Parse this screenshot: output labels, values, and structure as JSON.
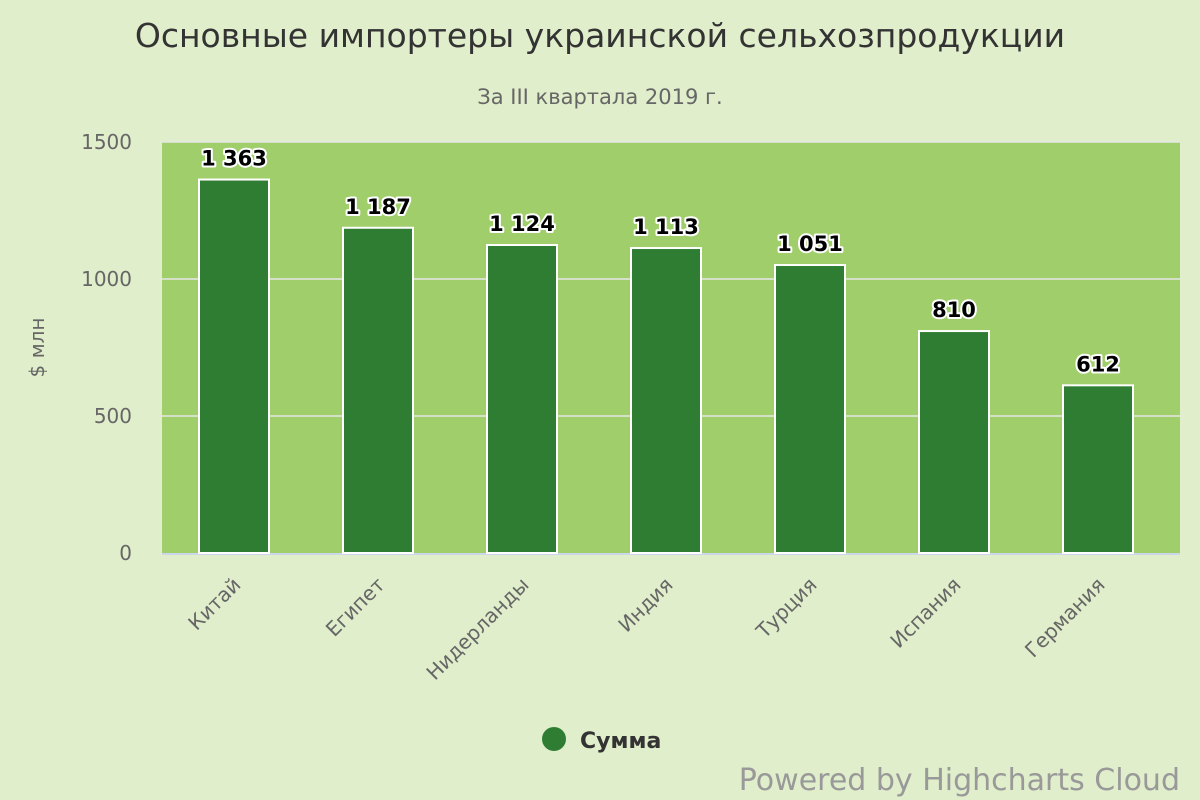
{
  "chart_data": {
    "type": "bar",
    "title": "Основные импортеры украинской сельхозпродукции",
    "subtitle": "За III квартала 2019 г.",
    "ylabel": "$ млн",
    "xlabel": "",
    "ylim": [
      0,
      1500
    ],
    "yticks": [
      "0",
      "500",
      "1000",
      "1500"
    ],
    "categories": [
      "Китай",
      "Египет",
      "Нидерланды",
      "Индия",
      "Турция",
      "Испания",
      "Германия"
    ],
    "series": [
      {
        "name": "Сумма",
        "values": [
          1363,
          1187,
          1124,
          1113,
          1051,
          810,
          612
        ],
        "labels": [
          "1 363",
          "1 187",
          "1 124",
          "1 113",
          "1 051",
          "810",
          "612"
        ],
        "color": "#2e7d32"
      }
    ],
    "grid": true,
    "legend_position": "bottom-center",
    "plot_background": "#9fce6a",
    "page_background": "#e0eecb",
    "credits": "Powered by Highcharts Cloud"
  }
}
